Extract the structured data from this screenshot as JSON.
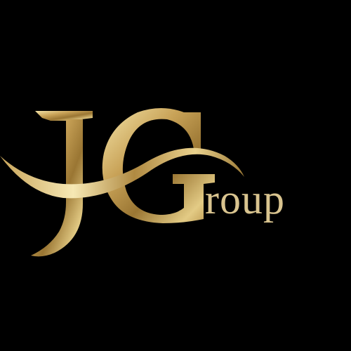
{
  "logo": {
    "monogram_text": "JG",
    "wordmark": "roup",
    "full_name": "JGroup",
    "background_color": "#000000",
    "gold_light": "#f3e3a6",
    "gold_mid": "#c9a55a",
    "gold_dark": "#8a6a2b",
    "wordmark_color": "#d9c48f",
    "icon": "swoosh-icon"
  }
}
